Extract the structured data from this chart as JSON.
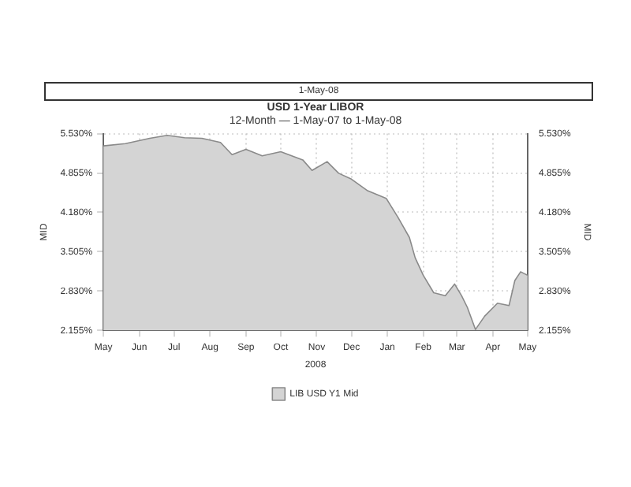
{
  "chart_data": {
    "type": "area",
    "title": "USD 1-Year LIBOR",
    "subtitle": "12-Month — 1-May-07 to 1-May-08",
    "xlabel": "2008",
    "ylabel": "MID",
    "y2label": "MID",
    "annotations": [
      "1-May-08"
    ],
    "x": [
      "2007-05-01",
      "2007-05-20",
      "2007-06-10",
      "2007-06-25",
      "2007-07-10",
      "2007-07-25",
      "2007-08-10",
      "2007-08-20",
      "2007-09-01",
      "2007-09-15",
      "2007-10-01",
      "2007-10-20",
      "2007-10-28",
      "2007-11-10",
      "2007-11-20",
      "2007-12-01",
      "2007-12-15",
      "2007-12-31",
      "2008-01-10",
      "2008-01-20",
      "2008-01-25",
      "2008-02-01",
      "2008-02-10",
      "2008-02-20",
      "2008-02-28",
      "2008-03-05",
      "2008-03-10",
      "2008-03-17",
      "2008-03-25",
      "2008-04-05",
      "2008-04-15",
      "2008-04-20",
      "2008-04-25",
      "2008-05-01"
    ],
    "series": [
      {
        "name": "LIB USD Y1 Mid",
        "color": "#d4d4d4",
        "values": [
          5.32,
          5.36,
          5.45,
          5.5,
          5.46,
          5.45,
          5.38,
          5.17,
          5.26,
          5.15,
          5.22,
          5.08,
          4.9,
          5.05,
          4.85,
          4.75,
          4.55,
          4.42,
          4.1,
          3.75,
          3.4,
          3.1,
          2.8,
          2.75,
          2.95,
          2.75,
          2.55,
          2.17,
          2.4,
          2.62,
          2.58,
          3.01,
          3.16,
          3.1
        ]
      }
    ],
    "xlim": [
      "2007-05-01",
      "2008-05-01"
    ],
    "xticks": [
      {
        "value": "2007-05-01",
        "label": "May"
      },
      {
        "value": "2007-06-01",
        "label": "Jun"
      },
      {
        "value": "2007-07-01",
        "label": "Jul"
      },
      {
        "value": "2007-08-01",
        "label": "Aug"
      },
      {
        "value": "2007-09-01",
        "label": "Sep"
      },
      {
        "value": "2007-10-01",
        "label": "Oct"
      },
      {
        "value": "2007-11-01",
        "label": "Nov"
      },
      {
        "value": "2007-12-01",
        "label": "Dec"
      },
      {
        "value": "2008-01-01",
        "label": "Jan"
      },
      {
        "value": "2008-02-01",
        "label": "Feb"
      },
      {
        "value": "2008-03-01",
        "label": "Mar"
      },
      {
        "value": "2008-04-01",
        "label": "Apr"
      },
      {
        "value": "2008-05-01",
        "label": "May"
      }
    ],
    "ylim": [
      2.155,
      5.53
    ],
    "yticks": [
      {
        "value": 2.155,
        "label": "2.155%"
      },
      {
        "value": 2.83,
        "label": "2.830%"
      },
      {
        "value": 3.505,
        "label": "3.505%"
      },
      {
        "value": 4.18,
        "label": "4.180%"
      },
      {
        "value": 4.855,
        "label": "4.855%"
      },
      {
        "value": 5.53,
        "label": "5.530%"
      }
    ],
    "y2lim": [
      2.155,
      5.53
    ],
    "y2ticks": [
      {
        "value": 2.155,
        "label": "2.155%"
      },
      {
        "value": 2.83,
        "label": "2.830%"
      },
      {
        "value": 3.505,
        "label": "3.505%"
      },
      {
        "value": 4.18,
        "label": "4.180%"
      },
      {
        "value": 4.855,
        "label": "4.855%"
      },
      {
        "value": 5.53,
        "label": "5.530%"
      }
    ],
    "grid": true,
    "legend": "bottom"
  }
}
